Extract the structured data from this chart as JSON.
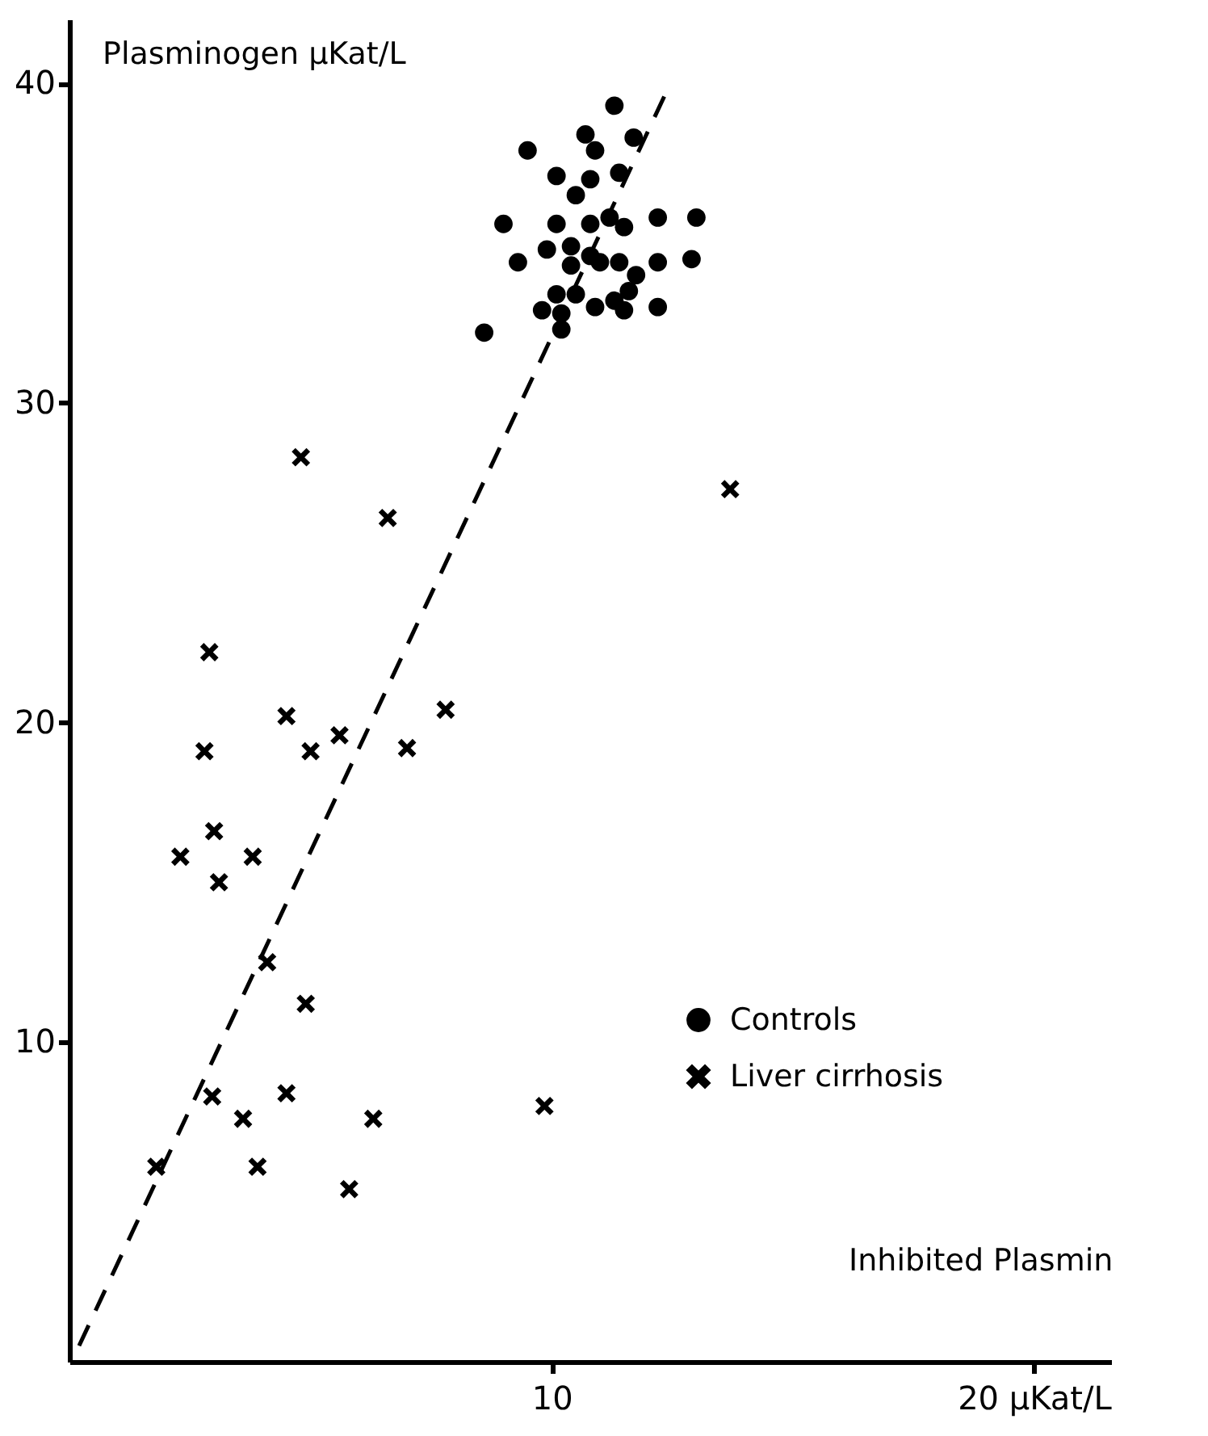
{
  "chart_data": {
    "type": "scatter",
    "xlabel": "Inhibited Plasmin",
    "ylabel": "Plasminogen µKat/L",
    "xlim": [
      0,
      21.6
    ],
    "ylim": [
      0,
      42
    ],
    "xticks": [
      10,
      {
        "value": 20,
        "label": "20 µKat/L"
      }
    ],
    "yticks": [
      10,
      20,
      30,
      40
    ],
    "legend": "right",
    "series": [
      {
        "name": "Controls",
        "color": "#000000",
        "marker": "circle",
        "x": [
          11.3,
          10.7,
          11.7,
          9.5,
          10.9,
          10.1,
          10.8,
          11.4,
          10.5,
          9.0,
          10.1,
          10.8,
          11.2,
          11.5,
          12.2,
          13.0,
          9.9,
          10.4,
          10.8,
          9.3,
          10.4,
          11.0,
          11.4,
          12.2,
          12.9,
          11.75,
          10.1,
          10.5,
          11.6,
          11.3,
          9.8,
          10.2,
          10.9,
          11.5,
          12.2,
          8.6,
          10.2
        ],
        "values": [
          39.3,
          38.4,
          38.3,
          37.9,
          37.9,
          37.1,
          37.0,
          37.2,
          36.5,
          35.6,
          35.6,
          35.6,
          35.8,
          35.5,
          35.8,
          35.8,
          34.8,
          34.9,
          34.6,
          34.4,
          34.3,
          34.4,
          34.4,
          34.4,
          34.5,
          34.0,
          33.4,
          33.4,
          33.5,
          33.2,
          32.9,
          32.8,
          33.0,
          32.9,
          33.0,
          32.2,
          32.3
        ]
      },
      {
        "name": "Liver cirrhosis",
        "color": "#000000",
        "marker": "cross",
        "x": [
          4.8,
          6.6,
          2.9,
          4.5,
          2.8,
          5.0,
          5.6,
          7.0,
          7.8,
          3.0,
          2.3,
          3.8,
          3.1,
          4.1,
          4.9,
          2.96,
          3.6,
          4.5,
          3.9,
          1.8,
          6.3,
          5.8,
          9.85,
          13.7
        ],
        "values": [
          28.3,
          26.4,
          22.2,
          20.2,
          19.1,
          19.1,
          19.6,
          19.2,
          20.4,
          16.6,
          15.8,
          15.8,
          15.0,
          12.5,
          11.2,
          8.3,
          7.6,
          8.4,
          6.1,
          6.1,
          7.6,
          5.4,
          8.0,
          27.3
        ]
      },
      {
        "type": "line",
        "color": "#000000",
        "line_style": "dashed",
        "x": [
          0.2,
          12.4
        ],
        "values": [
          0.5,
          39.8
        ]
      }
    ]
  }
}
